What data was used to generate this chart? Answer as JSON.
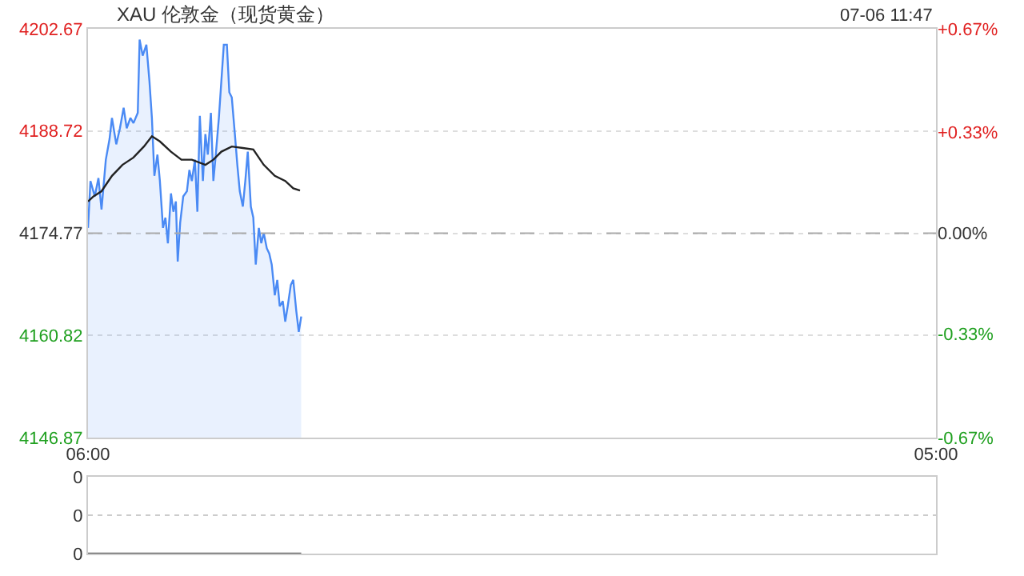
{
  "chart_data": [
    {
      "type": "area",
      "title": "XAU 伦敦金（现货黄金）",
      "annotations": [
        "07-06 11:47"
      ],
      "series": [
        {
          "color": "#4a8af4",
          "x": [
            "--07-06T06:00",
            "--07-06T06:04",
            "--07-06T06:11",
            "--07-06T06:17",
            "--07-06T06:22",
            "--07-06T06:29",
            "--07-06T06:35",
            "--07-06T06:39",
            "--07-06T06:46",
            "--07-06T06:52",
            "--07-06T06:58",
            "--07-06T07:03",
            "--07-06T07:09",
            "--07-06T07:14",
            "--07-06T07:21",
            "--07-06T07:24",
            "--07-06T07:29",
            "--07-06T07:35",
            "--07-06T07:40",
            "--07-06T07:44",
            "--07-06T07:48",
            "--07-06T07:53",
            "--07-06T07:57",
            "--07-06T08:02",
            "--07-06T08:06",
            "--07-06T08:10",
            "--07-06T08:15",
            "--07-06T08:19",
            "--07-06T08:23",
            "--07-06T08:26",
            "--07-06T08:30",
            "--07-06T08:35",
            "--07-06T08:41",
            "--07-06T08:45",
            "--07-06T08:49",
            "--07-06T08:54",
            "--07-06T08:58",
            "--07-06T09:02",
            "--07-06T09:07",
            "--07-06T09:11",
            "--07-06T09:15",
            "--07-06T09:20",
            "--07-06T09:24",
            "--07-06T09:28",
            "--07-06T09:33",
            "--07-06T09:37",
            "--07-06T09:41",
            "--07-06T09:46",
            "--07-06T09:50",
            "--07-06T09:54",
            "--07-06T09:59",
            "--07-06T10:03",
            "--07-06T10:07",
            "--07-06T10:12",
            "--07-06T10:16",
            "--07-06T10:20",
            "--07-06T10:25",
            "--07-06T10:29",
            "--07-06T10:33",
            "--07-06T10:38",
            "--07-06T10:42",
            "--07-06T10:46",
            "--07-06T10:51",
            "--07-06T10:55",
            "--07-06T10:59",
            "--07-06T11:04",
            "--07-06T11:08",
            "--07-06T11:12",
            "--07-06T11:17",
            "--07-06T11:21",
            "--07-06T11:25",
            "--07-06T11:30",
            "--07-06T11:34",
            "--07-06T11:39",
            "--07-06T11:43",
            "--07-06T11:47"
          ],
          "values": [
            4175.5,
            4181.9,
            4179.8,
            4182.3,
            4178.0,
            4184.8,
            4187.6,
            4190.5,
            4186.9,
            4189.1,
            4191.9,
            4189.1,
            4190.5,
            4189.8,
            4191.2,
            4201.2,
            4199.0,
            4200.5,
            4195.5,
            4190.5,
            4182.6,
            4185.5,
            4181.9,
            4175.5,
            4176.9,
            4173.4,
            4180.2,
            4177.7,
            4179.1,
            4170.9,
            4176.2,
            4179.8,
            4180.5,
            4183.4,
            4181.9,
            4184.8,
            4177.7,
            4190.8,
            4181.9,
            4188.3,
            4185.5,
            4191.2,
            4181.9,
            4185.5,
            4190.5,
            4195.5,
            4200.5,
            4200.5,
            4194.0,
            4193.3,
            4188.3,
            4184.1,
            4180.5,
            4178.4,
            4181.9,
            4185.9,
            4178.4,
            4176.9,
            4170.5,
            4175.5,
            4173.4,
            4174.8,
            4172.7,
            4172.0,
            4170.5,
            4166.3,
            4168.4,
            4164.8,
            4165.5,
            4162.7,
            4164.8,
            4167.7,
            4168.4,
            4164.1,
            4161.3,
            4163.4
          ]
        },
        {
          "type": "line",
          "color": "#222222",
          "x": [
            "--07-06T06:00",
            "--07-06T06:09",
            "--07-06T06:22",
            "--07-06T06:39",
            "--07-06T06:56",
            "--07-06T07:14",
            "--07-06T07:31",
            "--07-06T07:44",
            "--07-06T07:57",
            "--07-06T08:15",
            "--07-06T08:32",
            "--07-06T08:49",
            "--07-06T09:11",
            "--07-06T09:24",
            "--07-06T09:37",
            "--07-06T09:54",
            "--07-06T10:12",
            "--07-06T10:29",
            "--07-06T10:46",
            "--07-06T11:04",
            "--07-06T11:21",
            "--07-06T11:34",
            "--07-06T11:45"
          ],
          "values": [
            4179.1,
            4179.8,
            4180.5,
            4182.6,
            4184.1,
            4185.1,
            4186.6,
            4188.0,
            4187.3,
            4185.9,
            4184.8,
            4184.8,
            4184.1,
            4184.8,
            4185.9,
            4186.6,
            4186.4,
            4186.2,
            4184.1,
            4182.6,
            4181.9,
            4180.9,
            4180.6
          ]
        }
      ],
      "xlim": [
        "--07-06T06:00",
        "--07-07T05:00"
      ],
      "xticks": [
        {
          "value": "--07-06T06:00",
          "label": "06:00"
        },
        {
          "value": "--07-07T05:00",
          "label": "05:00"
        }
      ],
      "ylim": [
        4146.87,
        4202.67
      ],
      "yticks": [
        4146.87,
        4160.82,
        4174.77,
        4188.72,
        4202.67
      ],
      "y2lim": [
        -0.67,
        0.67
      ],
      "y2ticks": [
        {
          "value": -0.67,
          "label": "-0.67%"
        },
        {
          "value": -0.33,
          "label": "-0.33%"
        },
        {
          "value": 0,
          "label": "0.00%"
        },
        {
          "value": 0.33,
          "label": "+0.33%"
        },
        {
          "value": 0.67,
          "label": "+0.67%"
        }
      ],
      "grid": "y",
      "ref_lines": [
        {
          "axis": "y",
          "value": 4174.77,
          "color": "#aaaaaa",
          "line_style": "dashed"
        }
      ]
    },
    {
      "type": "line",
      "series": [
        {
          "color": "#666666",
          "x": [
            "--07-06T06:00",
            "--07-06T11:47"
          ],
          "values": [
            0,
            0
          ]
        }
      ],
      "xlim": [
        "--07-06T06:00",
        "--07-07T05:00"
      ],
      "ylim": [
        0,
        0.4
      ],
      "yticks": [
        {
          "value": 0,
          "label": "0"
        },
        {
          "value": 0.2,
          "label": "0"
        },
        {
          "value": 0.4,
          "label": "0"
        }
      ],
      "grid": "y",
      "tick_labels": "y"
    }
  ]
}
